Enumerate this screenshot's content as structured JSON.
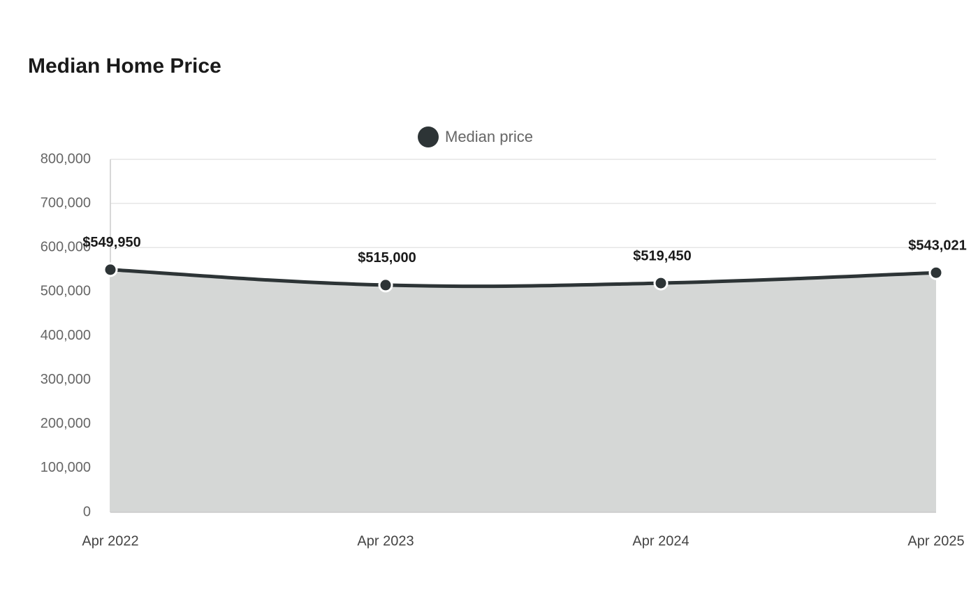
{
  "chart_data": {
    "type": "area",
    "title": "Median Home Price",
    "categories": [
      "Apr 2022",
      "Apr 2023",
      "Apr 2024",
      "Apr 2025"
    ],
    "series": [
      {
        "name": "Median price",
        "color": "#2d3436",
        "area_color": "#d5d7d6",
        "values": [
          549950,
          515000,
          519450,
          543021
        ],
        "value_labels": [
          "$549,950",
          "$515,000",
          "$519,450",
          "$543,021"
        ]
      }
    ],
    "ylim": [
      0,
      800000
    ],
    "yticks": [
      0,
      {
        "value": 100000,
        "label": "100,000"
      },
      {
        "value": 200000,
        "label": "200,000"
      },
      {
        "value": 300000,
        "label": "300,000"
      },
      {
        "value": 400000,
        "label": "400,000"
      },
      {
        "value": 500000,
        "label": "500,000"
      },
      {
        "value": 600000,
        "label": "600,000"
      },
      {
        "value": 700000,
        "label": "700,000"
      },
      {
        "value": 800000,
        "label": "800,000"
      }
    ],
    "grid": true,
    "legend": "top"
  }
}
